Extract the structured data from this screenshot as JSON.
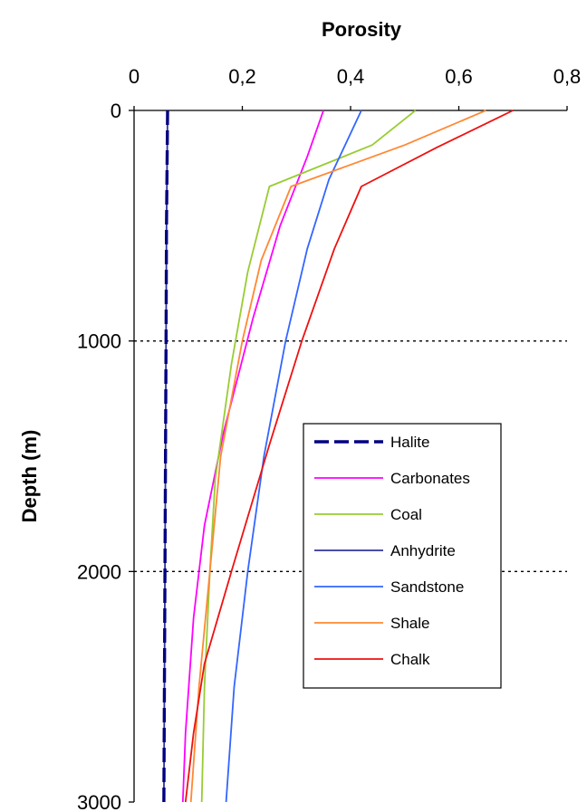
{
  "chart_data": {
    "type": "line",
    "title": "",
    "xlabel": "Porosity",
    "ylabel": "Depth (m)",
    "x_axis_position": "top",
    "y_axis_inverted": true,
    "xlim": [
      0,
      0.8
    ],
    "ylim": [
      0,
      3000
    ],
    "x_ticks": [
      0,
      0.2,
      0.4,
      0.6,
      0.8
    ],
    "x_tick_labels": [
      "0",
      "0,2",
      "0,4",
      "0,6",
      "0,8"
    ],
    "y_ticks": [
      0,
      1000,
      2000,
      3000
    ],
    "y_tick_labels": [
      "0",
      "1000",
      "2000",
      "3000"
    ],
    "grid": {
      "horizontal": true,
      "style": "dotted",
      "vertical": false
    },
    "legend_position": "lower-right",
    "series": [
      {
        "name": "Halite",
        "color": "#000080",
        "dash": "dashed",
        "points": [
          [
            0.062,
            0
          ],
          [
            0.06,
            500
          ],
          [
            0.059,
            1000
          ],
          [
            0.058,
            1500
          ],
          [
            0.057,
            2000
          ],
          [
            0.056,
            2500
          ],
          [
            0.055,
            3000
          ]
        ]
      },
      {
        "name": "Carbonates",
        "color": "#ff00ff",
        "dash": "solid",
        "points": [
          [
            0.35,
            0
          ],
          [
            0.32,
            200
          ],
          [
            0.27,
            500
          ],
          [
            0.22,
            900
          ],
          [
            0.165,
            1400
          ],
          [
            0.13,
            1800
          ],
          [
            0.11,
            2200
          ],
          [
            0.095,
            2700
          ],
          [
            0.09,
            3000
          ]
        ]
      },
      {
        "name": "Coal",
        "color": "#99cc33",
        "dash": "solid",
        "points": [
          [
            0.52,
            0
          ],
          [
            0.44,
            150
          ],
          [
            0.25,
            330
          ],
          [
            0.21,
            700
          ],
          [
            0.18,
            1100
          ],
          [
            0.15,
            1600
          ],
          [
            0.14,
            2000
          ],
          [
            0.13,
            2500
          ],
          [
            0.125,
            3000
          ]
        ]
      },
      {
        "name": "Anhydrite",
        "color": "#333399",
        "dash": "solid",
        "points": [
          [
            0.062,
            0
          ],
          [
            0.06,
            500
          ],
          [
            0.059,
            1000
          ],
          [
            0.058,
            1500
          ],
          [
            0.057,
            2000
          ],
          [
            0.056,
            2500
          ],
          [
            0.055,
            3000
          ]
        ]
      },
      {
        "name": "Sandstone",
        "color": "#3366ff",
        "dash": "solid",
        "points": [
          [
            0.42,
            0
          ],
          [
            0.39,
            150
          ],
          [
            0.36,
            300
          ],
          [
            0.32,
            600
          ],
          [
            0.28,
            1000
          ],
          [
            0.24,
            1500
          ],
          [
            0.21,
            2000
          ],
          [
            0.185,
            2500
          ],
          [
            0.17,
            3000
          ]
        ]
      },
      {
        "name": "Shale",
        "color": "#ff8833",
        "dash": "solid",
        "points": [
          [
            0.65,
            0
          ],
          [
            0.5,
            150
          ],
          [
            0.29,
            330
          ],
          [
            0.235,
            650
          ],
          [
            0.2,
            1000
          ],
          [
            0.16,
            1500
          ],
          [
            0.14,
            2000
          ],
          [
            0.12,
            2500
          ],
          [
            0.105,
            3000
          ]
        ]
      },
      {
        "name": "Chalk",
        "color": "#ee1111",
        "dash": "solid",
        "points": [
          [
            0.7,
            0
          ],
          [
            0.56,
            160
          ],
          [
            0.42,
            330
          ],
          [
            0.37,
            600
          ],
          [
            0.31,
            1000
          ],
          [
            0.25,
            1450
          ],
          [
            0.18,
            2000
          ],
          [
            0.13,
            2400
          ],
          [
            0.11,
            2700
          ],
          [
            0.095,
            3000
          ]
        ]
      }
    ]
  }
}
